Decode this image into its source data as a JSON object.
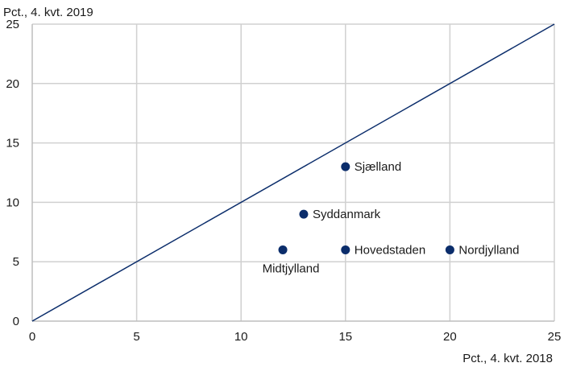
{
  "chart_data": {
    "type": "scatter",
    "title": "",
    "ylabel": "Pct., 4. kvt. 2019",
    "xlabel": "Pct., 4. kvt. 2018",
    "xlim": [
      0,
      25
    ],
    "ylim": [
      0,
      25
    ],
    "xticks": [
      0,
      5,
      10,
      15,
      20,
      25
    ],
    "yticks": [
      0,
      5,
      10,
      15,
      20,
      25
    ],
    "grid": "vertical-and-horizontal",
    "reference_line": {
      "x": [
        0,
        25
      ],
      "y": [
        0,
        25
      ],
      "color": "#0b2d6b"
    },
    "marker_color": "#0b2d6b",
    "points": [
      {
        "label": "Sjælland",
        "x": 15,
        "y": 13,
        "label_pos": "right"
      },
      {
        "label": "Syddanmark",
        "x": 13,
        "y": 9,
        "label_pos": "right"
      },
      {
        "label": "Midtjylland",
        "x": 12,
        "y": 6,
        "label_pos": "below"
      },
      {
        "label": "Hovedstaden",
        "x": 15,
        "y": 6,
        "label_pos": "right"
      },
      {
        "label": "Nordjylland",
        "x": 20,
        "y": 6,
        "label_pos": "right"
      }
    ]
  }
}
